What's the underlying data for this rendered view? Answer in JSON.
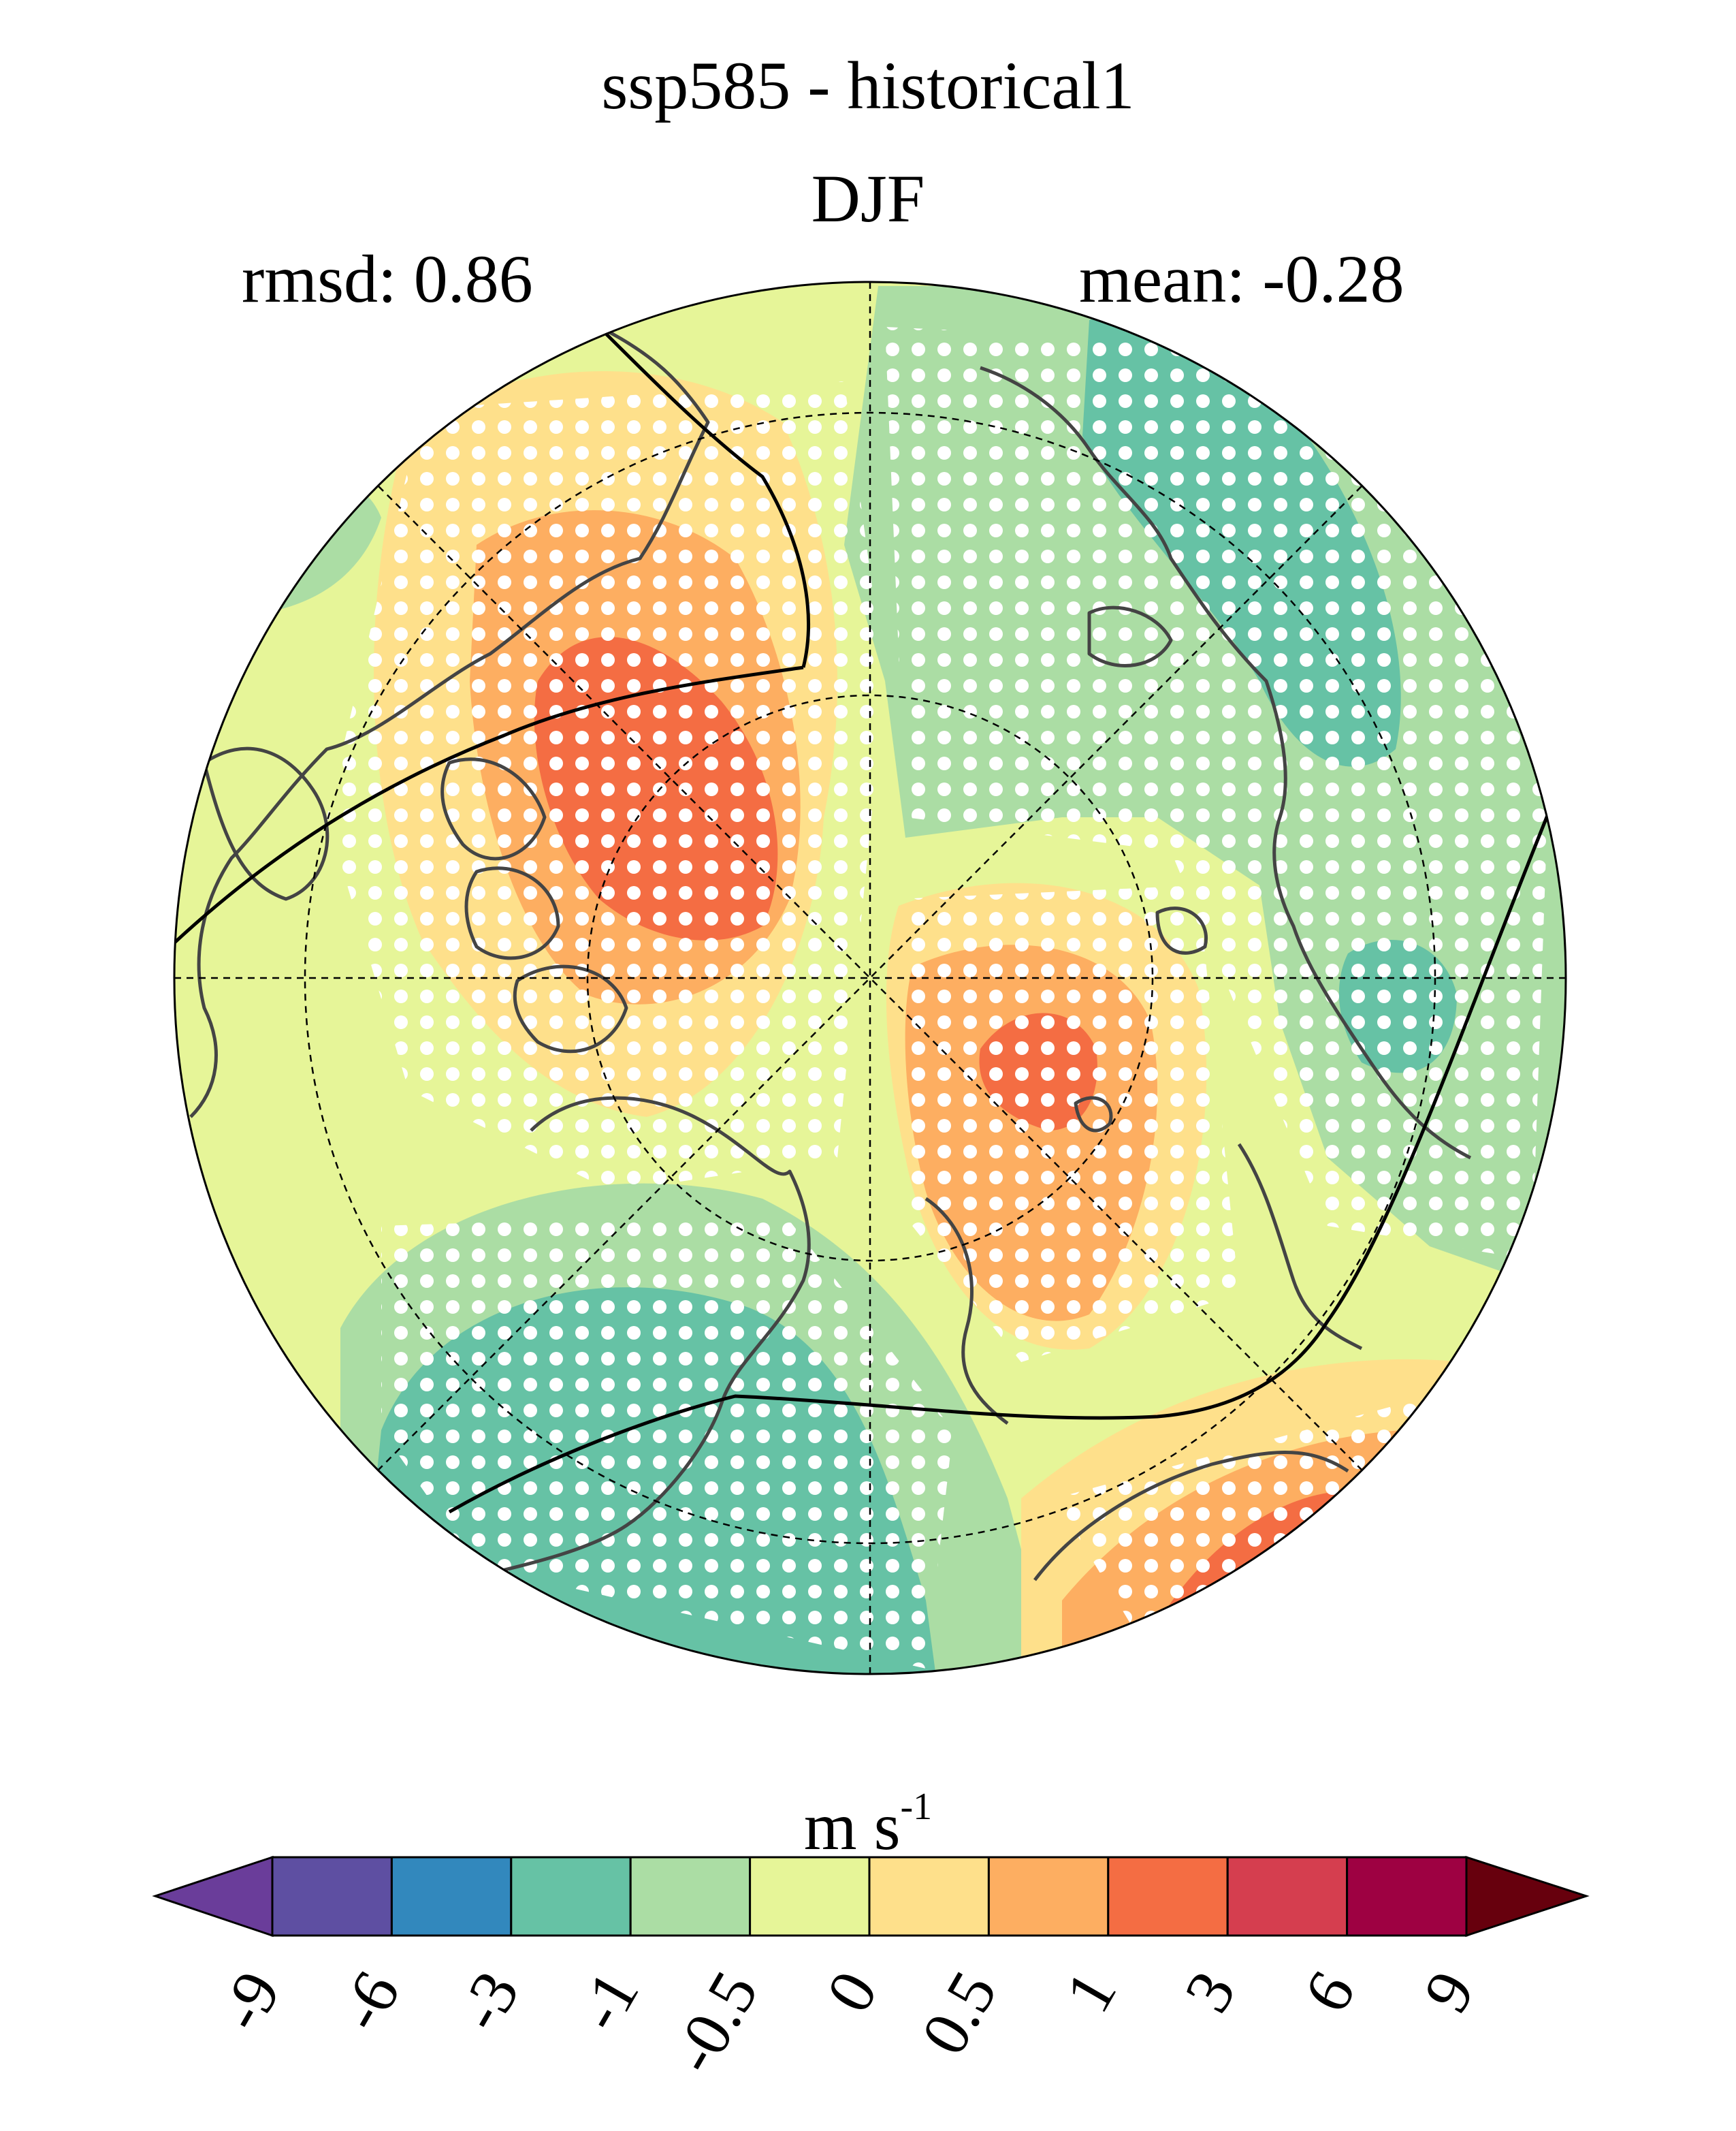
{
  "title": "ssp585 - historical1",
  "season": "DJF",
  "stats": {
    "rmsd": "rmsd: 0.86",
    "mean": "mean: -0.28"
  },
  "colorbar": {
    "units_base": "m s",
    "units_exp": "-1",
    "ticks": [
      "-9",
      "-6",
      "-3",
      "-1",
      "-0.5",
      "0",
      "0.5",
      "1",
      "3",
      "6",
      "9"
    ],
    "colors": [
      "#5e4fa2",
      "#3288bd",
      "#66c2a5",
      "#abdda4",
      "#e6f598",
      "#fee08b",
      "#fdae61",
      "#f46d43",
      "#d53e4f",
      "#9e0142"
    ],
    "under_color": "#6a3d9a",
    "over_color": "#67000d"
  },
  "map": {
    "projection": "north polar stereographic",
    "background_color": "#e6f598",
    "stipple": "white dots mark significant areas"
  }
}
